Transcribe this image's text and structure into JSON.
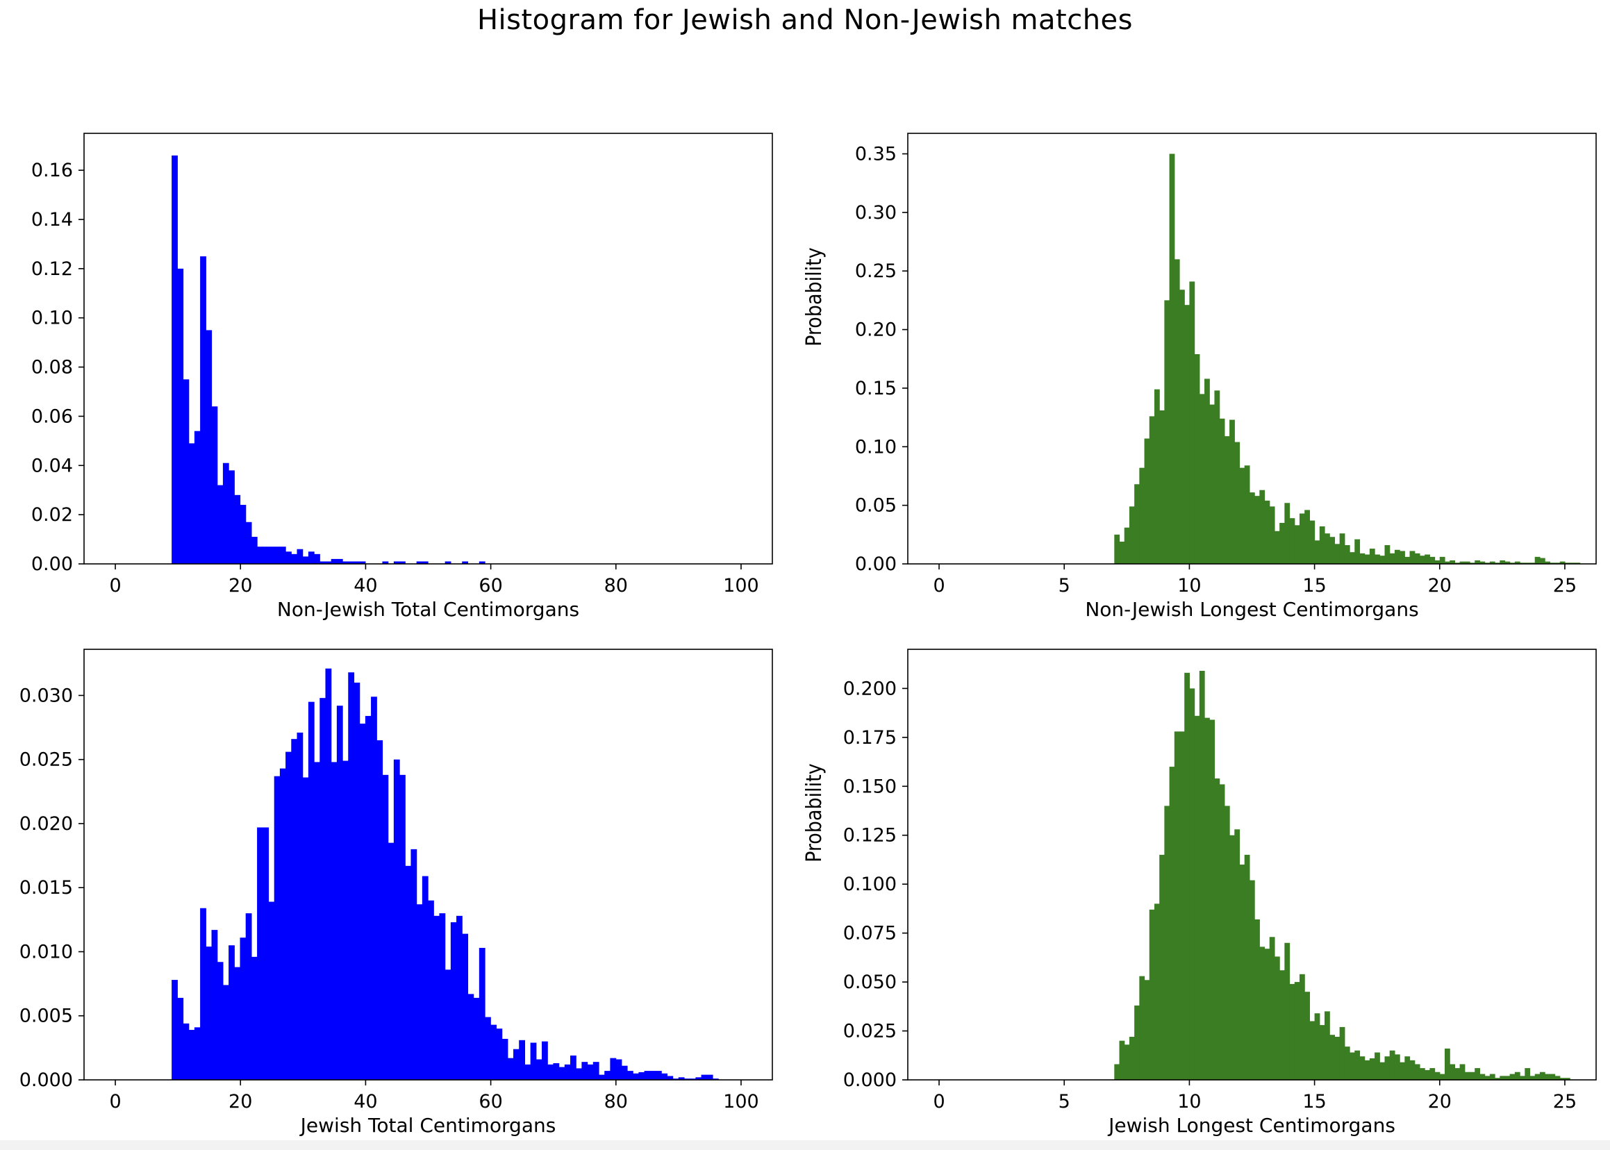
{
  "figure_title": "Histogram for Jewish and Non-Jewish matches",
  "chart_data": [
    {
      "type": "bar",
      "title": "",
      "xlabel": "Non-Jewish Total Centimorgans",
      "ylabel": "",
      "color": "#0000ff",
      "xlim": [
        -5,
        105
      ],
      "ylim": [
        0,
        0.175
      ],
      "xticks": [
        0,
        20,
        40,
        60,
        80,
        100
      ],
      "yticks": [
        0.0,
        0.02,
        0.04,
        0.06,
        0.08,
        0.1,
        0.12,
        0.14,
        0.16
      ],
      "yticklabels": [
        "0.00",
        "0.02",
        "0.04",
        "0.06",
        "0.08",
        "0.10",
        "0.12",
        "0.14",
        "0.16"
      ],
      "grid": false,
      "bins": {
        "start": 9.0,
        "width": 0.91,
        "values": [
          0.166,
          0.12,
          0.075,
          0.049,
          0.054,
          0.125,
          0.095,
          0.064,
          0.032,
          0.041,
          0.038,
          0.028,
          0.024,
          0.017,
          0.011,
          0.007,
          0.007,
          0.007,
          0.007,
          0.007,
          0.005,
          0.004,
          0.006,
          0.003,
          0.005,
          0.004,
          0.001,
          0.001,
          0.002,
          0.002,
          0.001,
          0.001,
          0.001,
          0.001,
          0.0,
          0.0,
          0.0,
          0.001,
          0.0,
          0.001,
          0.001,
          0.0,
          0.0,
          0.001,
          0.001,
          0.0,
          0.0,
          0.0,
          0.001,
          0.0,
          0.0,
          0.001,
          0.0,
          0.0,
          0.001,
          0.0
        ]
      }
    },
    {
      "type": "bar",
      "title": "",
      "xlabel": "Non-Jewish Longest Centimorgans",
      "ylabel": "Probability",
      "color": "#3a7d22",
      "xlim": [
        -1.25,
        26.25
      ],
      "ylim": [
        0,
        0.3675
      ],
      "xticks": [
        0,
        5,
        10,
        15,
        20,
        25
      ],
      "yticks": [
        0.0,
        0.05,
        0.1,
        0.15,
        0.2,
        0.25,
        0.3,
        0.35
      ],
      "yticklabels": [
        "0.00",
        "0.05",
        "0.10",
        "0.15",
        "0.20",
        "0.25",
        "0.30",
        "0.35"
      ],
      "grid": false,
      "bins": {
        "start": 7.0,
        "width": 0.2,
        "values": [
          0.025,
          0.019,
          0.031,
          0.049,
          0.068,
          0.082,
          0.107,
          0.126,
          0.149,
          0.131,
          0.225,
          0.35,
          0.26,
          0.234,
          0.221,
          0.241,
          0.179,
          0.145,
          0.158,
          0.136,
          0.148,
          0.124,
          0.109,
          0.123,
          0.104,
          0.082,
          0.084,
          0.061,
          0.058,
          0.063,
          0.054,
          0.049,
          0.028,
          0.035,
          0.052,
          0.039,
          0.033,
          0.043,
          0.046,
          0.037,
          0.02,
          0.032,
          0.026,
          0.023,
          0.017,
          0.026,
          0.016,
          0.01,
          0.021,
          0.009,
          0.008,
          0.013,
          0.008,
          0.007,
          0.016,
          0.009,
          0.012,
          0.011,
          0.006,
          0.011,
          0.009,
          0.007,
          0.008,
          0.006,
          0.003,
          0.006,
          0.002,
          0.003,
          0.001,
          0.002,
          0.002,
          0.001,
          0.003,
          0.002,
          0.001,
          0.002,
          0.001,
          0.003,
          0.002,
          0.001,
          0.002,
          0.001,
          0.001,
          0.001,
          0.006,
          0.005,
          0.002,
          0.001,
          0.001,
          0.002,
          0.001,
          0.001,
          0.001,
          0.0,
          0.0,
          0.0,
          0.0,
          0.0,
          0.0,
          0.0,
          0.0,
          0.001
        ]
      }
    },
    {
      "type": "bar",
      "title": "",
      "xlabel": "Jewish Total Centimorgans",
      "ylabel": "",
      "color": "#0000ff",
      "xlim": [
        -5,
        105
      ],
      "ylim": [
        0,
        0.0336
      ],
      "xticks": [
        0,
        20,
        40,
        60,
        80,
        100
      ],
      "yticks": [
        0.0,
        0.005,
        0.01,
        0.015,
        0.02,
        0.025,
        0.03
      ],
      "yticklabels": [
        "0.000",
        "0.005",
        "0.010",
        "0.015",
        "0.020",
        "0.025",
        "0.030"
      ],
      "grid": false,
      "bins": {
        "start": 9.0,
        "width": 0.91,
        "values": [
          0.0078,
          0.0064,
          0.0044,
          0.0039,
          0.0041,
          0.0134,
          0.0104,
          0.0117,
          0.0092,
          0.0074,
          0.0105,
          0.0088,
          0.0111,
          0.013,
          0.0096,
          0.0197,
          0.0197,
          0.0139,
          0.0237,
          0.0243,
          0.0256,
          0.0266,
          0.0271,
          0.0236,
          0.0295,
          0.0248,
          0.0298,
          0.0321,
          0.0248,
          0.0292,
          0.0249,
          0.0318,
          0.031,
          0.0278,
          0.0284,
          0.0299,
          0.0265,
          0.0238,
          0.0185,
          0.025,
          0.0238,
          0.0167,
          0.018,
          0.0137,
          0.0159,
          0.014,
          0.0128,
          0.013,
          0.0086,
          0.0123,
          0.0128,
          0.0114,
          0.0067,
          0.0064,
          0.0103,
          0.0049,
          0.0043,
          0.004,
          0.0032,
          0.0017,
          0.0024,
          0.0031,
          0.0012,
          0.0029,
          0.0016,
          0.003,
          0.0012,
          0.0013,
          0.001,
          0.0012,
          0.0019,
          0.0009,
          0.0014,
          0.0012,
          0.0014,
          0.0004,
          0.0007,
          0.0017,
          0.0016,
          0.0011,
          0.0007,
          0.0005,
          0.0006,
          0.0007,
          0.0007,
          0.0007,
          0.0005,
          0.0003,
          0.0001,
          0.0002,
          0.0001,
          0.0001,
          0.0002,
          0.0004,
          0.0004,
          0.0001
        ]
      }
    },
    {
      "type": "bar",
      "title": "",
      "xlabel": "Jewish Longest Centimorgans",
      "ylabel": "Probability",
      "color": "#3a7d22",
      "xlim": [
        -1.25,
        26.25
      ],
      "ylim": [
        0,
        0.22
      ],
      "xticks": [
        0,
        5,
        10,
        15,
        20,
        25
      ],
      "yticks": [
        0.0,
        0.025,
        0.05,
        0.075,
        0.1,
        0.125,
        0.15,
        0.175,
        0.2
      ],
      "yticklabels": [
        "0.000",
        "0.025",
        "0.050",
        "0.075",
        "0.100",
        "0.125",
        "0.150",
        "0.175",
        "0.200"
      ],
      "grid": false,
      "bins": {
        "start": 7.0,
        "width": 0.2,
        "values": [
          0.008,
          0.02,
          0.018,
          0.022,
          0.038,
          0.053,
          0.051,
          0.087,
          0.09,
          0.115,
          0.14,
          0.16,
          0.178,
          0.178,
          0.208,
          0.2,
          0.186,
          0.209,
          0.185,
          0.184,
          0.154,
          0.151,
          0.14,
          0.125,
          0.128,
          0.11,
          0.115,
          0.102,
          0.082,
          0.068,
          0.067,
          0.073,
          0.063,
          0.056,
          0.07,
          0.049,
          0.05,
          0.054,
          0.045,
          0.03,
          0.034,
          0.028,
          0.035,
          0.023,
          0.022,
          0.027,
          0.017,
          0.014,
          0.015,
          0.012,
          0.01,
          0.011,
          0.014,
          0.009,
          0.012,
          0.015,
          0.013,
          0.009,
          0.012,
          0.01,
          0.008,
          0.006,
          0.005,
          0.006,
          0.004,
          0.003,
          0.016,
          0.008,
          0.006,
          0.008,
          0.004,
          0.004,
          0.006,
          0.003,
          0.002,
          0.003,
          0.001,
          0.002,
          0.002,
          0.003,
          0.004,
          0.002,
          0.006,
          0.002,
          0.003,
          0.004,
          0.003,
          0.003,
          0.002,
          0.001,
          0.001
        ]
      }
    }
  ]
}
